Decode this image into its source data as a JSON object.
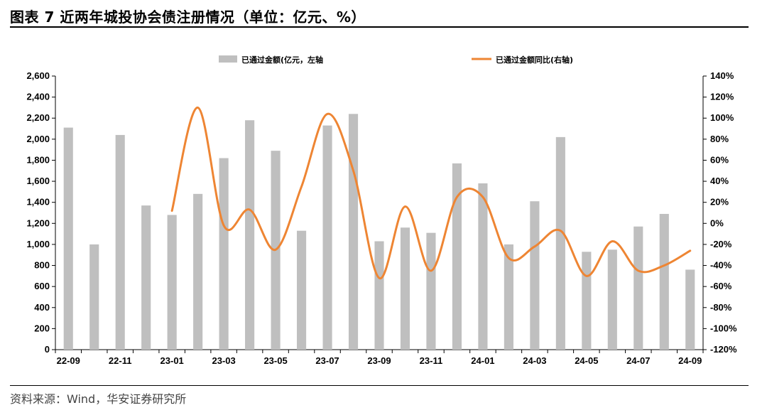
{
  "header": {
    "title": "图表 7  近两年城投协会债注册情况（单位：亿元、%）"
  },
  "footer": {
    "source": "资料来源：Wind，华安证券研究所"
  },
  "chart_data": {
    "type": "bar+line",
    "colors": {
      "bar": "#bfbfbf",
      "line": "#ee8533"
    },
    "legend": {
      "position": "top-center",
      "bar_label": "已通过金额(亿元，左轴",
      "line_label": "已通过金额同比(右轴)"
    },
    "categories": [
      "22-09",
      "22-10",
      "22-11",
      "22-12",
      "23-01",
      "23-02",
      "23-03",
      "23-04",
      "23-05",
      "23-06",
      "23-07",
      "23-08",
      "23-09",
      "23-10",
      "23-11",
      "23-12",
      "24-01",
      "24-02",
      "24-03",
      "24-04",
      "24-05",
      "24-06",
      "24-07",
      "24-08",
      "24-09"
    ],
    "x_tick_labels": [
      "22-09",
      "",
      "22-11",
      "",
      "23-01",
      "",
      "23-03",
      "",
      "23-05",
      "",
      "23-07",
      "",
      "23-09",
      "",
      "23-11",
      "",
      "24-01",
      "",
      "24-03",
      "",
      "24-05",
      "",
      "24-07",
      "",
      "24-09"
    ],
    "series": [
      {
        "name": "已通过金额(亿元，左轴",
        "type": "bar",
        "axis": "left",
        "values": [
          2110,
          1000,
          2040,
          1370,
          1280,
          1480,
          1820,
          2180,
          1890,
          1130,
          2130,
          2240,
          1030,
          1160,
          1110,
          1770,
          1580,
          1000,
          1410,
          2020,
          930,
          950,
          1170,
          1290,
          760
        ]
      },
      {
        "name": "已通过金额同比(右轴)",
        "type": "line",
        "axis": "right",
        "values": [
          null,
          null,
          null,
          null,
          12,
          110,
          -2,
          13,
          -25,
          35,
          104,
          50,
          -52,
          16,
          -45,
          25,
          25,
          -33,
          -22,
          -7,
          -50,
          -17,
          -45,
          -40,
          -26
        ]
      }
    ],
    "y_left": {
      "min": 0,
      "max": 2600,
      "step": 200,
      "tick_labels": [
        "0",
        "200",
        "400",
        "600",
        "800",
        "1,000",
        "1,200",
        "1,400",
        "1,600",
        "1,800",
        "2,000",
        "2,200",
        "2,400",
        "2,600"
      ]
    },
    "y_right": {
      "min": -120,
      "max": 140,
      "step": 20,
      "tick_labels": [
        "-120%",
        "-100%",
        "-80%",
        "-60%",
        "-40%",
        "-20%",
        "0%",
        "20%",
        "40%",
        "60%",
        "80%",
        "100%",
        "120%",
        "140%"
      ]
    },
    "grid": false
  }
}
